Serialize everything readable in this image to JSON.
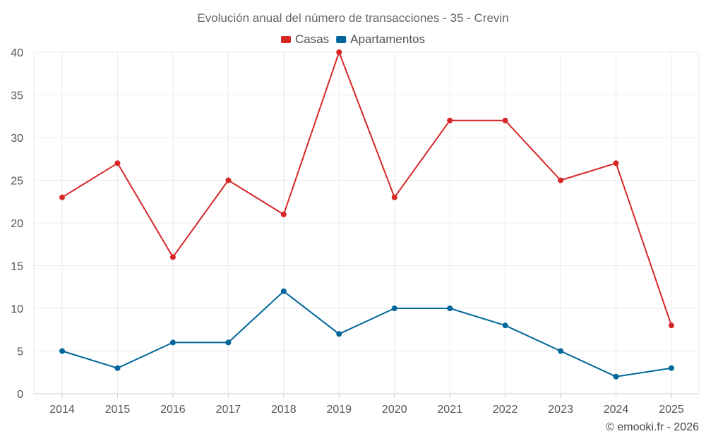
{
  "chart_data": {
    "type": "line",
    "title": "Evolución anual del número de transacciones - 35 - Crevin",
    "categories": [
      "2014",
      "2015",
      "2016",
      "2017",
      "2018",
      "2019",
      "2020",
      "2021",
      "2022",
      "2023",
      "2024",
      "2025"
    ],
    "ylim": [
      0,
      40
    ],
    "yticks": [
      0,
      5,
      10,
      15,
      20,
      25,
      30,
      35,
      40
    ],
    "grid": true,
    "legend_position": "top-center",
    "series": [
      {
        "name": "Casas",
        "color": "#d62728",
        "values": [
          23,
          27,
          16,
          25,
          21,
          40,
          23,
          32,
          32,
          25,
          27,
          8
        ]
      },
      {
        "name": "Apartamentos",
        "color": "#006699",
        "values": [
          5,
          3,
          6,
          6,
          12,
          7,
          10,
          10,
          8,
          5,
          2,
          3
        ]
      }
    ]
  },
  "credit": "© emooki.fr - 2026"
}
